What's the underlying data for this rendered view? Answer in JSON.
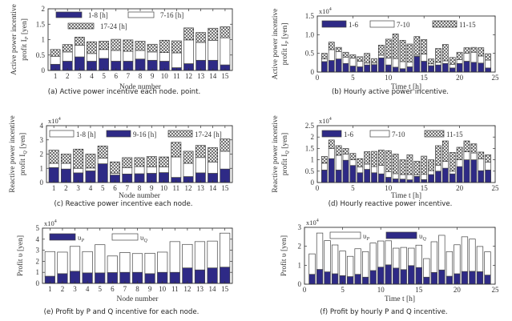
{
  "colors": {
    "dark": "#2e2a86",
    "white": "#ffffff",
    "hatch_fg": "#222222",
    "hatch_bg": "#e8e8e8",
    "axis": "#333333"
  },
  "chart_data": [
    {
      "id": "a",
      "type": "bar",
      "stacked": true,
      "caption": "(a) Active power incentive each node. point.",
      "xlabel": "Node number",
      "ylabel_lines": [
        "Active power incentive",
        "profit I_P [yen]"
      ],
      "ylim": [
        0,
        2
      ],
      "yticks": [
        "0",
        "0.5",
        "1",
        "1.5",
        "2"
      ],
      "ytick_values": [
        0,
        0.5,
        1,
        1.5,
        2
      ],
      "multiplier": "",
      "x": [
        1,
        2,
        3,
        4,
        5,
        6,
        7,
        8,
        9,
        10,
        11,
        12,
        13,
        14,
        15
      ],
      "xlim": [
        0.4,
        15.6
      ],
      "xticks": [
        "1",
        "2",
        "3",
        "4",
        "5",
        "6",
        "7",
        "8",
        "9",
        "10",
        "11",
        "12",
        "13",
        "14",
        "15"
      ],
      "xtick_values": [
        1,
        2,
        3,
        4,
        5,
        6,
        7,
        8,
        9,
        10,
        11,
        12,
        13,
        14,
        15
      ],
      "bar_width": 0.8,
      "legend_location": "top-left",
      "series": [
        {
          "name": "1-8 [h]",
          "style": "dark",
          "values": [
            0.2,
            0.3,
            0.44,
            0.3,
            0.39,
            0.3,
            0.3,
            0.37,
            0.33,
            0.3,
            0.09,
            0.22,
            0.33,
            0.33,
            0.18
          ]
        },
        {
          "name": "7-16 [h]",
          "style": "white",
          "values": [
            0.26,
            0.3,
            0.38,
            0.25,
            0.29,
            0.35,
            0.32,
            0.28,
            0.27,
            0.28,
            0.48,
            0.77,
            0.58,
            0.64,
            0.88
          ]
        },
        {
          "name": "17-24 [h]",
          "style": "hatch",
          "values": [
            0.22,
            0.24,
            0.26,
            0.38,
            0.27,
            0.36,
            0.37,
            0.3,
            0.25,
            0.4,
            0.39,
            0.39,
            0.32,
            0.4,
            0.36
          ]
        }
      ]
    },
    {
      "id": "b",
      "type": "bar",
      "stacked": true,
      "caption": "(b) Hourly active power incentive.",
      "xlabel": "Time t  [h]",
      "ylabel_lines": [
        "Active power incentive",
        "profit I_P [yen]"
      ],
      "ylim": [
        0,
        1.5
      ],
      "yticks": [
        "0",
        "0.5",
        "1.0",
        "1.5"
      ],
      "ytick_values": [
        0,
        0.5,
        1.0,
        1.5
      ],
      "multiplier": "x10^4",
      "x": [
        1,
        2,
        3,
        4,
        5,
        6,
        7,
        8,
        9,
        10,
        11,
        12,
        13,
        14,
        15,
        16,
        17,
        18,
        19,
        20,
        21,
        22,
        23,
        24
      ],
      "xlim": [
        0,
        25
      ],
      "xticks": [
        "0",
        "5",
        "10",
        "15",
        "20",
        "25"
      ],
      "xtick_values": [
        0,
        5,
        10,
        15,
        20,
        25
      ],
      "bar_width": 0.8,
      "legend_location": "top",
      "series": [
        {
          "name": "1-6",
          "style": "dark",
          "values": [
            0.28,
            0.31,
            0.35,
            0.23,
            0.16,
            0.14,
            0.19,
            0.2,
            0.38,
            0.19,
            0.13,
            0.09,
            0.14,
            0.42,
            0.29,
            0.17,
            0.19,
            0.23,
            0.11,
            0.23,
            0.29,
            0.26,
            0.24,
            0.11
          ]
        },
        {
          "name": "7-10",
          "style": "white",
          "values": [
            0.07,
            0.29,
            0.2,
            0.17,
            0.21,
            0.15,
            0.05,
            0.04,
            0.07,
            0.18,
            0.23,
            0.19,
            0.13,
            0.03,
            0.19,
            0.05,
            0.07,
            0.07,
            0.09,
            0.1,
            0.21,
            0.27,
            0.19,
            0.21
          ]
        },
        {
          "name": "11-15",
          "style": "hatch",
          "values": [
            0.15,
            0.2,
            0.11,
            0.13,
            0.09,
            0.12,
            0.26,
            0.12,
            0.27,
            0.51,
            0.66,
            0.57,
            0.48,
            0.5,
            0.39,
            0.13,
            0.37,
            0.44,
            0.19,
            0.2,
            0.15,
            0.13,
            0.22,
            0.17
          ]
        }
      ]
    },
    {
      "id": "c",
      "type": "bar",
      "stacked": true,
      "caption": "(c) Reactive power incentive each node.",
      "xlabel": "Node number",
      "ylabel_lines": [
        "Reactive power incentive",
        "profit I_Q [yen]"
      ],
      "ylim": [
        0,
        4
      ],
      "yticks": [
        "0",
        "1",
        "2",
        "3",
        "4"
      ],
      "ytick_values": [
        0,
        1,
        2,
        3,
        4
      ],
      "multiplier": "x10^4",
      "x": [
        1,
        2,
        3,
        4,
        5,
        6,
        7,
        8,
        9,
        10,
        11,
        12,
        13,
        14,
        15
      ],
      "xlim": [
        0.4,
        15.6
      ],
      "xticks": [
        "1",
        "2",
        "3",
        "4",
        "5",
        "6",
        "7",
        "8",
        "9",
        "10",
        "11",
        "12",
        "13",
        "14",
        "15"
      ],
      "xtick_values": [
        1,
        2,
        3,
        4,
        5,
        6,
        7,
        8,
        9,
        10,
        11,
        12,
        13,
        14,
        15
      ],
      "bar_width": 0.8,
      "legend_location": "top",
      "series": [
        {
          "name": "9-16 [h]",
          "style": "dark",
          "legend_order": 1,
          "values": [
            1.05,
            0.95,
            0.68,
            0.82,
            1.32,
            0.53,
            0.6,
            0.62,
            0.65,
            0.7,
            0.36,
            0.42,
            0.68,
            0.65,
            0.95
          ]
        },
        {
          "name": "1-8 [h]",
          "style": "white",
          "legend_order": 0,
          "values": [
            0.3,
            0.4,
            0.32,
            0.2,
            0.4,
            0.12,
            0.45,
            0.5,
            0.45,
            0.4,
            1.44,
            0.93,
            1.08,
            0.78,
            1.25
          ]
        },
        {
          "name": "17-24 [h]",
          "style": "hatch",
          "legend_order": 2,
          "values": [
            0.93,
            0.65,
            1.35,
            0.98,
            0.85,
            0.8,
            0.7,
            0.63,
            0.73,
            0.7,
            1.03,
            0.85,
            0.85,
            1.02,
            0.87
          ]
        }
      ]
    },
    {
      "id": "d",
      "type": "bar",
      "stacked": true,
      "caption": "(d) Hourly reactive power incentive.",
      "xlabel": "Time t  [h]",
      "ylabel_lines": [
        "Reactive power incentive",
        "profit I_Q [yen]"
      ],
      "ylim": [
        0,
        2.5
      ],
      "yticks": [
        "0",
        "0.5",
        "1",
        "1.5",
        "2",
        "2.5"
      ],
      "ytick_values": [
        0,
        0.5,
        1,
        1.5,
        2,
        2.5
      ],
      "multiplier": "x10^4",
      "x": [
        1,
        2,
        3,
        4,
        5,
        6,
        7,
        8,
        9,
        10,
        11,
        12,
        13,
        14,
        15,
        16,
        17,
        18,
        19,
        20,
        21,
        22,
        23,
        24
      ],
      "xlim": [
        0,
        25
      ],
      "xticks": [
        "0",
        "5",
        "10",
        "15",
        "20",
        "25"
      ],
      "xtick_values": [
        0,
        5,
        10,
        15,
        20,
        25
      ],
      "bar_width": 0.8,
      "legend_location": "top",
      "series": [
        {
          "name": "1-6",
          "style": "dark",
          "values": [
            0.55,
            1.05,
            0.55,
            0.98,
            0.75,
            0.43,
            0.58,
            0.43,
            0.38,
            0.23,
            0.16,
            0.15,
            0.12,
            0.27,
            0.13,
            0.35,
            0.5,
            0.63,
            0.38,
            0.7,
            1.0,
            1.0,
            0.52,
            0.55
          ]
        },
        {
          "name": "7-10",
          "style": "white",
          "values": [
            0.3,
            0.45,
            0.65,
            0.27,
            0.25,
            0.25,
            0.23,
            0.27,
            0.38,
            0.25,
            0.23,
            0.2,
            0.23,
            0.07,
            0.23,
            0.17,
            0.25,
            0.3,
            0.12,
            0.3,
            0.35,
            0.3,
            0.52,
            0.35
          ]
        },
        {
          "name": "11-15",
          "style": "hatch",
          "values": [
            0.3,
            0.37,
            0.42,
            0.25,
            0.28,
            0.37,
            0.55,
            0.67,
            0.67,
            0.92,
            0.86,
            0.65,
            0.87,
            0.6,
            0.8,
            0.48,
            0.87,
            0.9,
            0.82,
            0.55,
            0.48,
            0.4,
            0.3,
            0.32
          ]
        }
      ]
    },
    {
      "id": "e",
      "type": "bar",
      "stacked": true,
      "caption": "(e) Profit by P and Q incentive for each node.",
      "xlabel": "Node number",
      "ylabel_lines": [
        "Profit υ  [yen]"
      ],
      "ylim": [
        0,
        5
      ],
      "yticks": [
        "0",
        "1",
        "2",
        "3",
        "4",
        "5"
      ],
      "ytick_values": [
        0,
        1,
        2,
        3,
        4,
        5
      ],
      "multiplier": "x10^4",
      "x": [
        1,
        2,
        3,
        4,
        5,
        6,
        7,
        8,
        9,
        10,
        11,
        12,
        13,
        14,
        15
      ],
      "xlim": [
        0.4,
        15.6
      ],
      "xticks": [
        "1",
        "2",
        "3",
        "4",
        "5",
        "6",
        "7",
        "8",
        "9",
        "10",
        "11",
        "12",
        "13",
        "14",
        "15"
      ],
      "xtick_values": [
        1,
        2,
        3,
        4,
        5,
        6,
        7,
        8,
        9,
        10,
        11,
        12,
        13,
        14,
        15
      ],
      "bar_width": 0.8,
      "legend_location": "top",
      "series": [
        {
          "name": "υ_P",
          "style": "dark",
          "values": [
            0.65,
            0.88,
            1.1,
            0.95,
            0.95,
            0.98,
            1.0,
            1.0,
            0.88,
            1.0,
            1.0,
            1.4,
            1.22,
            1.4,
            1.47
          ]
        },
        {
          "name": "υ_Q",
          "style": "white",
          "values": [
            2.23,
            1.95,
            2.25,
            1.93,
            2.55,
            1.5,
            1.8,
            1.7,
            1.85,
            1.83,
            2.78,
            2.13,
            2.56,
            2.43,
            3.08
          ]
        }
      ]
    },
    {
      "id": "f",
      "type": "bar",
      "stacked": true,
      "caption": "(f) Profit by hourly P and Q incentive.",
      "xlabel": "Time t  [h]",
      "ylabel_lines": [
        "Profit υ  [yen]"
      ],
      "ylim": [
        0,
        3
      ],
      "yticks": [
        "0",
        "1",
        "2",
        "3"
      ],
      "ytick_values": [
        0,
        1,
        2,
        3
      ],
      "multiplier": "x10^4",
      "x": [
        1,
        2,
        3,
        4,
        5,
        6,
        7,
        8,
        9,
        10,
        11,
        12,
        13,
        14,
        15,
        16,
        17,
        18,
        19,
        20,
        21,
        22,
        23,
        24
      ],
      "xlim": [
        0,
        25
      ],
      "xticks": [
        "0",
        "5",
        "10",
        "15",
        "20",
        "25"
      ],
      "xtick_values": [
        0,
        5,
        10,
        15,
        20,
        25
      ],
      "bar_width": 0.8,
      "legend_location": "top",
      "series": [
        {
          "name": "υ_Q",
          "style": "dark",
          "legend_order": 1,
          "values": [
            0.52,
            0.78,
            0.65,
            0.55,
            0.45,
            0.4,
            0.52,
            0.37,
            0.72,
            0.9,
            1.02,
            0.85,
            0.77,
            0.98,
            0.88,
            0.37,
            0.62,
            0.75,
            0.42,
            0.55,
            0.67,
            0.68,
            0.66,
            0.48
          ]
        },
        {
          "name": "υ_P",
          "style": "white",
          "legend_order": 0,
          "values": [
            1.08,
            1.92,
            1.65,
            1.52,
            1.3,
            1.07,
            1.35,
            1.35,
            1.45,
            1.38,
            1.27,
            1.05,
            1.17,
            0.92,
            1.18,
            0.98,
            1.62,
            1.83,
            1.3,
            1.53,
            1.83,
            1.7,
            1.33,
            1.23
          ]
        }
      ]
    }
  ]
}
